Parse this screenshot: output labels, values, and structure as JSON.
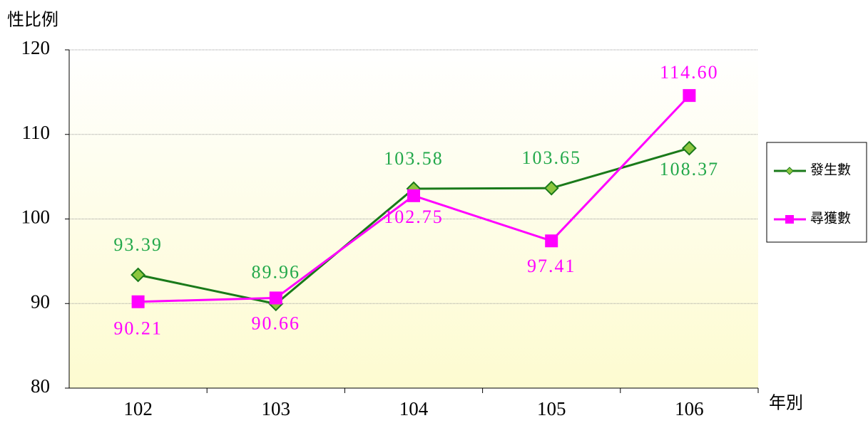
{
  "chart_data": {
    "type": "line",
    "y_axis_label": "性比例",
    "x_axis_label": "年別",
    "categories": [
      "102",
      "103",
      "104",
      "105",
      "106"
    ],
    "series": [
      {
        "name": "發生數",
        "color": "#1a7a1a",
        "marker_color": "#8dc63f",
        "label_color": "#22a84a",
        "marker": "diamond",
        "values": [
          93.39,
          89.96,
          103.58,
          103.65,
          108.37
        ],
        "value_labels": [
          "93.39",
          "89.96",
          "103.58",
          "103.65",
          "108.37"
        ]
      },
      {
        "name": "尋獲數",
        "color": "#ff00ff",
        "marker_color": "#ff00ff",
        "label_color": "#ff00ff",
        "marker": "square",
        "values": [
          90.21,
          90.66,
          102.75,
          97.41,
          114.6
        ],
        "value_labels": [
          "90.21",
          "90.66",
          "102.75",
          "97.41",
          "114.60"
        ]
      }
    ],
    "ylim": [
      80,
      120
    ],
    "yticks": [
      80,
      90,
      100,
      110,
      120
    ],
    "grid": true,
    "legend": "right"
  }
}
